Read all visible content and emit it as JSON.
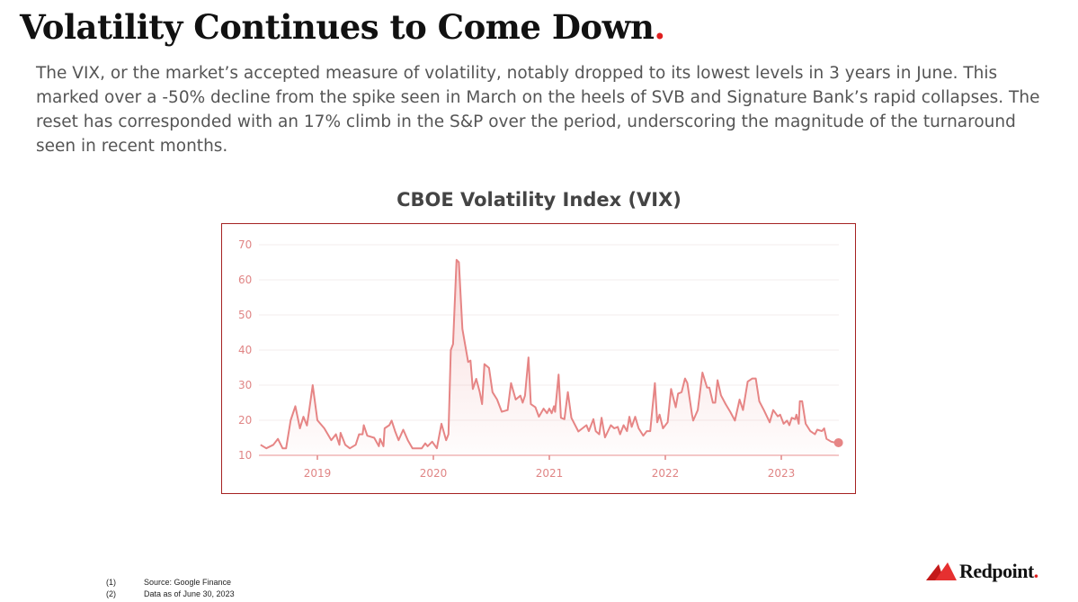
{
  "header": {
    "title": "Volatility Continues to Come Down",
    "title_dot": "."
  },
  "description": "The VIX, or the market’s accepted measure of volatility, notably dropped to its lowest levels in 3 years in June. This marked over a -50% decline from the spike seen in March on the heels of SVB and Signature Bank’s rapid collapses. The reset has corresponded with an 17% climb in the S&P over the period, underscoring the magnitude of the turnaround seen in recent months.",
  "chart_data": {
    "type": "area",
    "title": "CBOE Volatility Index (VIX)",
    "xlabel": "",
    "ylabel": "",
    "xlim": [
      2018.5,
      2023.5
    ],
    "ylim": [
      10,
      70
    ],
    "yticks": [
      10,
      20,
      30,
      40,
      50,
      60,
      70
    ],
    "xticks": [
      {
        "value": 2019,
        "label": "2019"
      },
      {
        "value": 2020,
        "label": "2020"
      },
      {
        "value": 2021,
        "label": "2021"
      },
      {
        "value": 2022,
        "label": "2022"
      },
      {
        "value": 2023,
        "label": "2023"
      }
    ],
    "grid": true,
    "line_color": "#e68585",
    "frame_color": "#a52222",
    "series": [
      {
        "name": "VIX",
        "x": [
          2018.51,
          2018.56,
          2018.62,
          2018.66,
          2018.7,
          2018.73,
          2018.77,
          2018.81,
          2018.85,
          2018.88,
          2018.91,
          2018.93,
          2018.96,
          2019.0,
          2019.06,
          2019.12,
          2019.16,
          2019.19,
          2019.2,
          2019.24,
          2019.28,
          2019.33,
          2019.36,
          2019.39,
          2019.4,
          2019.43,
          2019.49,
          2019.53,
          2019.54,
          2019.57,
          2019.58,
          2019.62,
          2019.64,
          2019.67,
          2019.7,
          2019.74,
          2019.78,
          2019.82,
          2019.9,
          2019.93,
          2019.95,
          2019.99,
          2020.03,
          2020.07,
          2020.11,
          2020.13,
          2020.15,
          2020.17,
          2020.2,
          2020.22,
          2020.25,
          2020.3,
          2020.32,
          2020.34,
          2020.37,
          2020.4,
          2020.42,
          2020.44,
          2020.48,
          2020.51,
          2020.55,
          2020.59,
          2020.64,
          2020.67,
          2020.71,
          2020.75,
          2020.77,
          2020.79,
          2020.82,
          2020.84,
          2020.88,
          2020.91,
          2020.95,
          2020.98,
          2021.0,
          2021.02,
          2021.04,
          2021.05,
          2021.08,
          2021.1,
          2021.13,
          2021.16,
          2021.19,
          2021.25,
          2021.32,
          2021.34,
          2021.38,
          2021.4,
          2021.43,
          2021.45,
          2021.48,
          2021.53,
          2021.56,
          2021.59,
          2021.61,
          2021.64,
          2021.67,
          2021.69,
          2021.71,
          2021.74,
          2021.77,
          2021.81,
          2021.84,
          2021.87,
          2021.91,
          2021.93,
          2021.95,
          2021.98,
          2022.02,
          2022.05,
          2022.09,
          2022.11,
          2022.14,
          2022.17,
          2022.19,
          2022.23,
          2022.24,
          2022.28,
          2022.32,
          2022.36,
          2022.38,
          2022.41,
          2022.43,
          2022.45,
          2022.48,
          2022.52,
          2022.56,
          2022.6,
          2022.64,
          2022.67,
          2022.71,
          2022.75,
          2022.78,
          2022.81,
          2022.85,
          2022.9,
          2022.93,
          2022.97,
          2022.99,
          2023.02,
          2023.05,
          2023.07,
          2023.09,
          2023.12,
          2023.13,
          2023.15,
          2023.16,
          2023.18,
          2023.21,
          2023.25,
          2023.29,
          2023.31,
          2023.35,
          2023.37,
          2023.39,
          2023.43,
          2023.47
        ],
        "y": [
          13,
          12,
          13,
          14.7,
          12,
          12,
          20,
          24,
          17.7,
          21,
          18.5,
          23,
          30,
          20,
          17.7,
          14.3,
          16,
          13,
          16.4,
          13,
          12,
          13,
          16,
          16,
          18.6,
          15.6,
          15,
          12.6,
          14.7,
          12.6,
          17.7,
          18.6,
          19.9,
          16.9,
          14.3,
          17.3,
          14.3,
          12,
          12,
          13.4,
          12.6,
          13.9,
          12,
          19,
          14.3,
          16,
          40,
          41.7,
          65.7,
          65,
          46,
          36.6,
          37,
          28.9,
          31.8,
          28,
          24.6,
          36,
          34.9,
          28,
          25.9,
          22.4,
          22.9,
          30.6,
          25.9,
          27,
          25,
          27,
          37.9,
          24.6,
          23.7,
          21,
          23.3,
          22,
          23.3,
          22,
          24,
          22.4,
          33,
          20.7,
          20.3,
          28,
          20.7,
          16.8,
          18.6,
          16.9,
          20.3,
          16.9,
          16,
          20.7,
          15.1,
          18.6,
          17.7,
          18.1,
          16,
          18.6,
          16.9,
          21,
          18.1,
          21,
          17.7,
          15.6,
          16.9,
          16.9,
          30.6,
          19.4,
          21.6,
          17.7,
          19.4,
          28.9,
          23.7,
          27.6,
          28,
          31.9,
          30.6,
          21.6,
          19.9,
          22.9,
          33.6,
          29.3,
          29.3,
          25,
          25,
          31.4,
          27.1,
          24.6,
          22.4,
          19.9,
          25.9,
          22.9,
          31,
          31.9,
          31.9,
          25.4,
          22.9,
          19.4,
          22.9,
          21.1,
          21.6,
          19,
          19.9,
          18.6,
          20.7,
          20.3,
          21.6,
          19,
          25.4,
          25.4,
          19,
          16.9,
          16,
          17.3,
          16.9,
          17.7,
          14.7,
          13.9,
          13.6
        ]
      }
    ]
  },
  "footnotes": [
    {
      "num": "(1)",
      "text": "Source: Google Finance"
    },
    {
      "num": "(2)",
      "text": "Data as of June 30, 2023"
    }
  ],
  "logo": {
    "text": "Redpoint",
    "dot": "."
  }
}
